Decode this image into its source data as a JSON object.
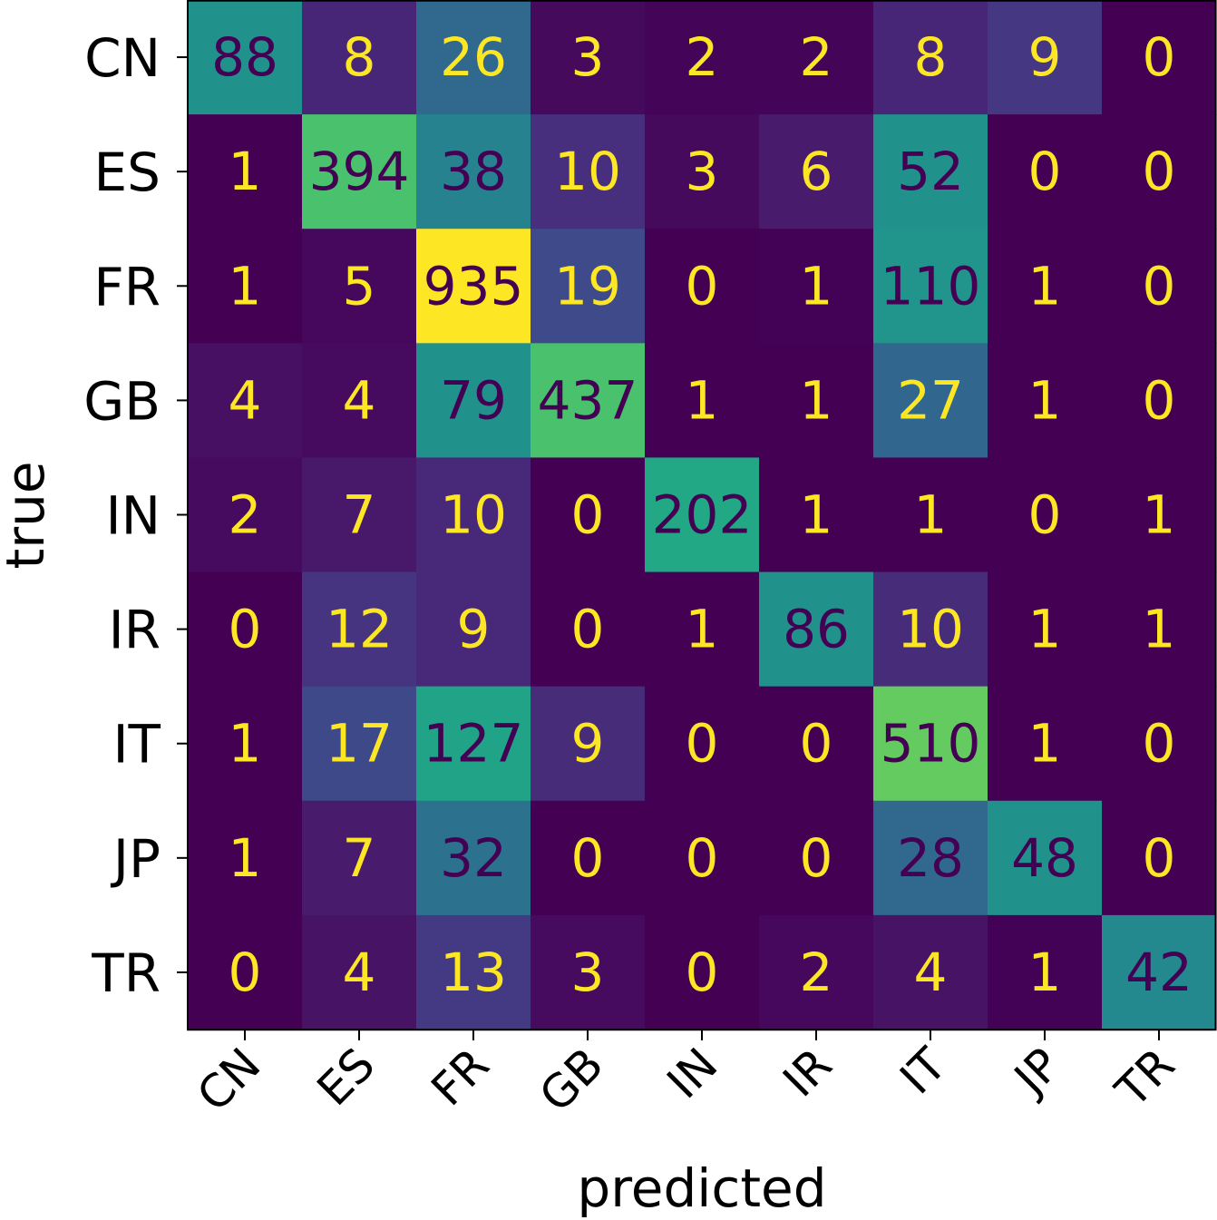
{
  "chart_data": {
    "type": "heatmap",
    "title": "",
    "xlabel": "predicted",
    "ylabel": "true",
    "x_categories": [
      "CN",
      "ES",
      "FR",
      "GB",
      "IN",
      "IR",
      "IT",
      "JP",
      "TR"
    ],
    "y_categories": [
      "CN",
      "ES",
      "FR",
      "GB",
      "IN",
      "IR",
      "IT",
      "JP",
      "TR"
    ],
    "values": [
      [
        88,
        8,
        26,
        3,
        2,
        2,
        8,
        9,
        0
      ],
      [
        1,
        394,
        38,
        10,
        3,
        6,
        52,
        0,
        0
      ],
      [
        1,
        5,
        935,
        19,
        0,
        1,
        110,
        1,
        0
      ],
      [
        4,
        4,
        79,
        437,
        1,
        1,
        27,
        1,
        0
      ],
      [
        2,
        7,
        10,
        0,
        202,
        1,
        1,
        0,
        1
      ],
      [
        0,
        12,
        9,
        0,
        1,
        86,
        10,
        1,
        1
      ],
      [
        1,
        17,
        127,
        9,
        0,
        0,
        510,
        1,
        0
      ],
      [
        1,
        7,
        32,
        0,
        0,
        0,
        28,
        48,
        0
      ],
      [
        0,
        4,
        13,
        3,
        0,
        2,
        4,
        1,
        42
      ]
    ],
    "cell_colors": [
      [
        "#21918c",
        "#482677",
        "#31688e",
        "#450a5c",
        "#440558",
        "#440558",
        "#482677",
        "#453781",
        "#440154"
      ],
      [
        "#440154",
        "#4ac16d",
        "#26828e",
        "#472f7d",
        "#450a5c",
        "#481b6d",
        "#21918c",
        "#440154",
        "#440154"
      ],
      [
        "#440154",
        "#46085c",
        "#fde725",
        "#3e4a89",
        "#440154",
        "#440256",
        "#21958b",
        "#440154",
        "#440154"
      ],
      [
        "#471063",
        "#460b5e",
        "#21918c",
        "#4ac16d",
        "#440154",
        "#440154",
        "#31668e",
        "#440154",
        "#440154"
      ],
      [
        "#460b5e",
        "#48186a",
        "#482878",
        "#440154",
        "#22a884",
        "#440154",
        "#440154",
        "#440154",
        "#440154"
      ],
      [
        "#440154",
        "#463480",
        "#482878",
        "#440154",
        "#440154",
        "#21918c",
        "#472c7a",
        "#440154",
        "#440154"
      ],
      [
        "#440154",
        "#3e4989",
        "#20a386",
        "#472c7a",
        "#440154",
        "#440154",
        "#63cb5f",
        "#440154",
        "#440154"
      ],
      [
        "#440154",
        "#481b6d",
        "#2c728e",
        "#440154",
        "#440154",
        "#440154",
        "#31688e",
        "#21918c",
        "#440154"
      ],
      [
        "#440154",
        "#471365",
        "#443983",
        "#460b5e",
        "#440154",
        "#46085c",
        "#471365",
        "#440256",
        "#23898e"
      ]
    ],
    "colormap": "viridis",
    "text_colors": {
      "light": "#fde725",
      "dark": "#440154"
    },
    "grid": false,
    "legend": "none"
  }
}
